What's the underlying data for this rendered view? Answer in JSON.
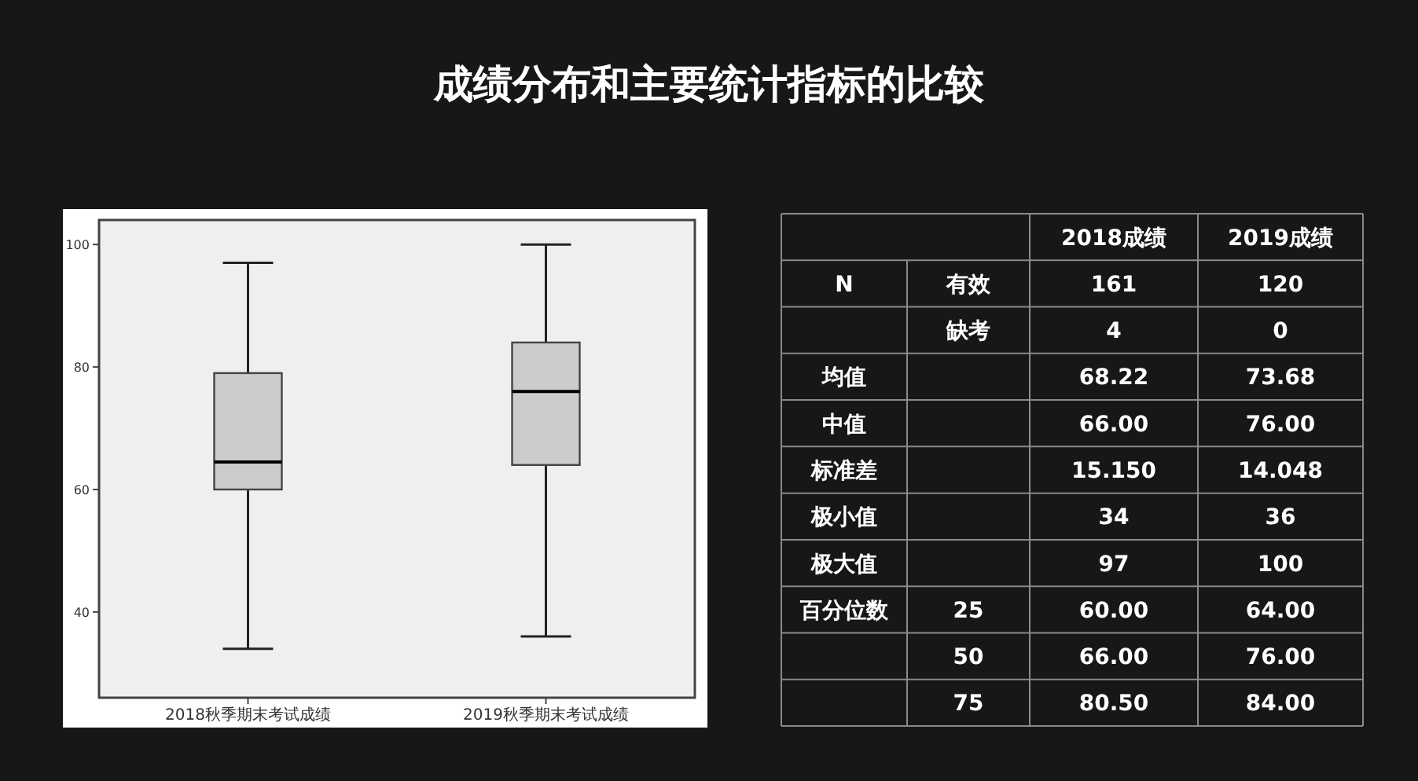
{
  "chart_data": [
    {
      "type": "box",
      "title": "成绩分布和主要统计指标的比较",
      "categories": [
        "2018秋季期末考试成绩",
        "2019秋季期末考试成绩"
      ],
      "color": "#cccccc",
      "ylim": [
        26,
        104
      ],
      "yticks": [
        40,
        60,
        80,
        100
      ],
      "boxes": [
        {
          "low": 34,
          "q1": 60,
          "median": 64.5,
          "q3": 79,
          "high": 97
        },
        {
          "low": 36,
          "q1": 64,
          "median": 76,
          "q3": 84,
          "high": 100
        }
      ]
    },
    {
      "type": "other",
      "categories": [
        "2018成绩",
        "2019成绩"
      ],
      "y_categories": [
        "N",
        null,
        "均值",
        "中值",
        "标准差",
        "极小值",
        "极大值",
        "百分位数",
        null,
        null
      ],
      "y2_categories": [
        "有效",
        "缺考",
        null,
        null,
        null,
        null,
        null,
        "25",
        "50",
        "75"
      ],
      "cell_labels": [
        [
          "161",
          "120"
        ],
        [
          "4",
          "0"
        ],
        [
          "68.22",
          "73.68"
        ],
        [
          "66.00",
          "76.00"
        ],
        [
          "15.150",
          "14.048"
        ],
        [
          "34",
          "36"
        ],
        [
          "97",
          "100"
        ],
        [
          "60.00",
          "64.00"
        ],
        [
          "66.00",
          "76.00"
        ],
        [
          "80.50",
          "84.00"
        ]
      ]
    }
  ]
}
